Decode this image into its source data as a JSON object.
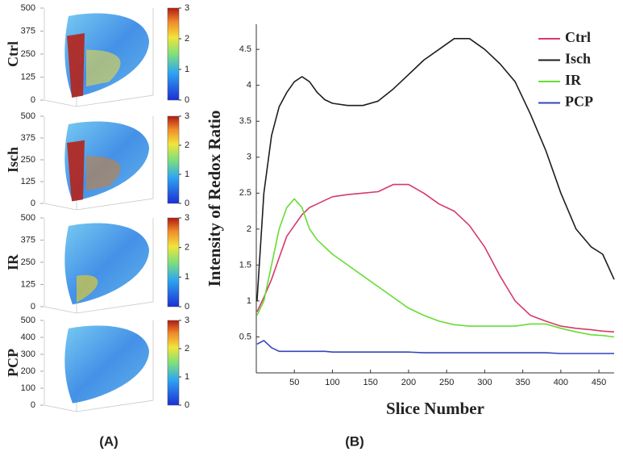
{
  "panel_a": {
    "label": "(A)",
    "rows": [
      {
        "label": "Ctrl",
        "yticks": [
          0,
          125,
          250,
          375,
          500
        ],
        "colorbar_ticks": [
          0,
          1,
          2,
          3
        ]
      },
      {
        "label": "Isch",
        "yticks": [
          0,
          125,
          250,
          375,
          500
        ],
        "colorbar_ticks": [
          0,
          1,
          2,
          3
        ]
      },
      {
        "label": "IR",
        "yticks": [
          0,
          125,
          250,
          375,
          500
        ],
        "colorbar_ticks": [
          0,
          1,
          2,
          3
        ]
      },
      {
        "label": "PCP",
        "yticks": [
          0,
          100,
          200,
          300,
          400,
          500
        ],
        "colorbar_ticks": [
          0,
          1,
          2,
          3
        ]
      }
    ]
  },
  "chart_data": {
    "type": "line",
    "panel_label": "(B)",
    "x_label": "Slice Number",
    "y_label": "Intensity of Redox Ratio",
    "x": [
      1,
      10,
      20,
      30,
      40,
      50,
      60,
      70,
      80,
      90,
      100,
      120,
      140,
      160,
      180,
      200,
      220,
      240,
      260,
      280,
      300,
      320,
      340,
      360,
      380,
      400,
      420,
      440,
      455,
      470
    ],
    "series": [
      {
        "name": "Ctrl",
        "color": "#d63a6a",
        "values": [
          0.85,
          1.05,
          1.3,
          1.6,
          1.9,
          2.05,
          2.2,
          2.3,
          2.35,
          2.4,
          2.45,
          2.48,
          2.5,
          2.52,
          2.62,
          2.62,
          2.5,
          2.35,
          2.25,
          2.05,
          1.75,
          1.35,
          1.0,
          0.8,
          0.72,
          0.65,
          0.62,
          0.6,
          0.58,
          0.57
        ]
      },
      {
        "name": "Isch",
        "color": "#1e1e1e",
        "values": [
          1.0,
          2.5,
          3.3,
          3.7,
          3.9,
          4.05,
          4.12,
          4.05,
          3.9,
          3.8,
          3.75,
          3.72,
          3.72,
          3.78,
          3.95,
          4.15,
          4.35,
          4.5,
          4.65,
          4.65,
          4.5,
          4.3,
          4.05,
          3.6,
          3.1,
          2.5,
          2.0,
          1.75,
          1.65,
          1.3
        ]
      },
      {
        "name": "IR",
        "color": "#66dd33",
        "values": [
          0.8,
          1.0,
          1.5,
          2.0,
          2.3,
          2.42,
          2.3,
          2.0,
          1.85,
          1.75,
          1.65,
          1.5,
          1.35,
          1.2,
          1.05,
          0.9,
          0.8,
          0.72,
          0.67,
          0.65,
          0.65,
          0.65,
          0.65,
          0.68,
          0.68,
          0.62,
          0.57,
          0.53,
          0.52,
          0.5
        ]
      },
      {
        "name": "PCP",
        "color": "#3344bb",
        "values": [
          0.4,
          0.45,
          0.35,
          0.3,
          0.3,
          0.3,
          0.3,
          0.3,
          0.3,
          0.3,
          0.29,
          0.29,
          0.29,
          0.29,
          0.29,
          0.29,
          0.28,
          0.28,
          0.28,
          0.28,
          0.28,
          0.28,
          0.28,
          0.28,
          0.28,
          0.27,
          0.27,
          0.27,
          0.27,
          0.27
        ]
      }
    ],
    "xlim": [
      0,
      470
    ],
    "ylim": [
      0,
      4.85
    ],
    "xticks": [
      50,
      100,
      150,
      200,
      250,
      300,
      350,
      400,
      450
    ],
    "yticks": [
      0.5,
      1,
      1.5,
      2,
      2.5,
      3,
      3.5,
      4,
      4.5
    ],
    "legend": "upper right",
    "grid": false
  }
}
